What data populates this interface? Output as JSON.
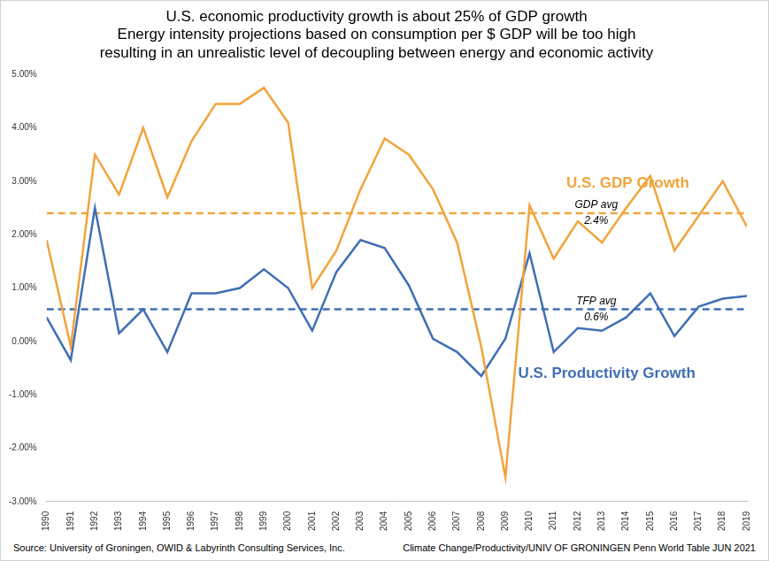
{
  "chart_data": {
    "type": "line",
    "title": [
      "U.S. economic productivity growth is about 25% of GDP growth",
      "Energy intensity projections based on consumption per $ GDP will be too high",
      "resulting in an unrealistic level of decoupling between energy and economic activity"
    ],
    "source": "Source: University of Groningen, OWID & Labyrinth Consulting Services, Inc.",
    "credit": "Climate Change/Productivity/UNIV OF GRONINGEN Penn World Table JUN 2021",
    "categories": [
      "1990",
      "1991",
      "1992",
      "1993",
      "1994",
      "1995",
      "1996",
      "1997",
      "1998",
      "1999",
      "2000",
      "2001",
      "2002",
      "2003",
      "2004",
      "2005",
      "2006",
      "2007",
      "2008",
      "2009",
      "2010",
      "2011",
      "2012",
      "2013",
      "2014",
      "2015",
      "2016",
      "2017",
      "2018",
      "2019"
    ],
    "series": [
      {
        "name": "U.S. GDP Growth",
        "color": "#f2a33a",
        "marker": "none",
        "line_style": "solid",
        "values": [
          1.9,
          -0.1,
          3.5,
          2.75,
          4.0,
          2.7,
          3.75,
          4.45,
          4.45,
          4.75,
          4.1,
          1.0,
          1.7,
          2.85,
          3.8,
          3.5,
          2.85,
          1.85,
          -0.1,
          -2.55,
          2.55,
          1.55,
          2.25,
          1.85,
          2.5,
          3.1,
          1.7,
          2.35,
          3.0,
          2.15
        ]
      },
      {
        "name": "U.S. Productivity Growth",
        "color": "#3f6fb5",
        "marker": "none",
        "line_style": "solid",
        "values": [
          0.45,
          -0.35,
          2.5,
          0.15,
          0.6,
          -0.2,
          0.9,
          0.9,
          1.0,
          1.35,
          1.0,
          0.2,
          1.3,
          1.9,
          1.75,
          1.05,
          0.05,
          -0.2,
          -0.65,
          0.05,
          1.65,
          -0.2,
          0.25,
          0.2,
          0.45,
          0.9,
          0.1,
          0.65,
          0.8,
          0.85
        ]
      }
    ],
    "reference_lines": [
      {
        "label": "GDP avg",
        "value": 2.4,
        "value_label": "2.4%",
        "color": "#f2a33a",
        "line_style": "dashed"
      },
      {
        "label": "TFP avg",
        "value": 0.6,
        "value_label": "0.6%",
        "color": "#3f6fb5",
        "line_style": "dashed"
      }
    ],
    "ylim": [
      -3,
      5
    ],
    "yticks": [
      {
        "value": -3,
        "label": "-3.00%"
      },
      {
        "value": -2,
        "label": "-2.00%"
      },
      {
        "value": -1,
        "label": "-1.00%"
      },
      {
        "value": 0,
        "label": "0.00%"
      },
      {
        "value": 1,
        "label": "1.00%"
      },
      {
        "value": 2,
        "label": "2.00%"
      },
      {
        "value": 3,
        "label": "3.00%"
      },
      {
        "value": 4,
        "label": "4.00%"
      },
      {
        "value": 5,
        "label": "5.00%"
      }
    ],
    "grid": false
  }
}
